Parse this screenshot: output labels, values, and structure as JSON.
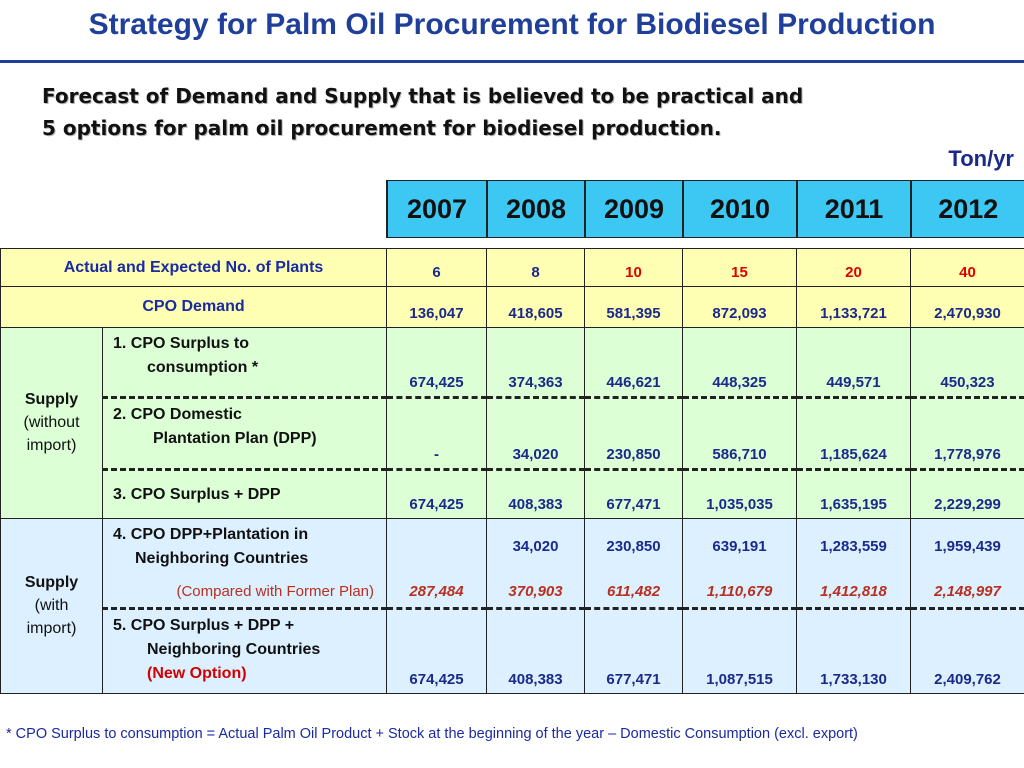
{
  "title": "Strategy for Palm Oil Procurement for Biodiesel Production",
  "subtitle_line1": "Forecast of Demand and Supply that is believed to be practical and",
  "subtitle_line2": "5 options for palm oil procurement for biodiesel production.",
  "unit": "Ton/yr",
  "years": [
    "2007",
    "2008",
    "2009",
    "2010",
    "2011",
    "2012"
  ],
  "plants": {
    "label": "Actual and Expected No. of Plants",
    "values": [
      "6",
      "8",
      "10",
      "15",
      "20",
      "40"
    ]
  },
  "cpo_demand": {
    "label": "CPO Demand",
    "values": [
      "136,047",
      "418,605",
      "581,395",
      "872,093",
      "1,133,721",
      "2,470,930"
    ]
  },
  "supply_without": {
    "label_main": "Supply",
    "label_sub1": "(without",
    "label_sub2": "import)",
    "opt1": {
      "line1": "1.  CPO Surplus to",
      "line2": "consumption *",
      "values": [
        "674,425",
        "374,363",
        "446,621",
        "448,325",
        "449,571",
        "450,323"
      ]
    },
    "opt2": {
      "line1": "2.  CPO Domestic",
      "line2": "Plantation Plan (DPP)",
      "values": [
        "-",
        "34,020",
        "230,850",
        "586,710",
        "1,185,624",
        "1,778,976"
      ]
    },
    "opt3": {
      "line1": "3.  CPO Surplus + DPP",
      "values": [
        "674,425",
        "408,383",
        "677,471",
        "1,035,035",
        "1,635,195",
        "2,229,299"
      ]
    }
  },
  "supply_with": {
    "label_main": "Supply",
    "label_sub1": "(with",
    "label_sub2": "import)",
    "opt4": {
      "line1": "4. CPO DPP+Plantation in",
      "line2": "Neighboring Countries",
      "values": [
        "",
        "34,020",
        "230,850",
        "639,191",
        "1,283,559",
        "1,959,439"
      ],
      "compare_label": "(Compared with Former Plan)",
      "compare_values": [
        "287,484",
        "370,903",
        "611,482",
        "1,110,679",
        "1,412,818",
        "2,148,997"
      ]
    },
    "opt5": {
      "line1": "5.  CPO Surplus + DPP +",
      "line2": "Neighboring Countries",
      "line3": "(New Option)",
      "values": [
        "674,425",
        "408,383",
        "677,471",
        "1,087,515",
        "1,733,130",
        "2,409,762"
      ]
    }
  },
  "footnote": "* CPO Surplus to consumption = Actual Palm Oil Product + Stock at the beginning of the year – Domestic Consumption (excl. export)"
}
